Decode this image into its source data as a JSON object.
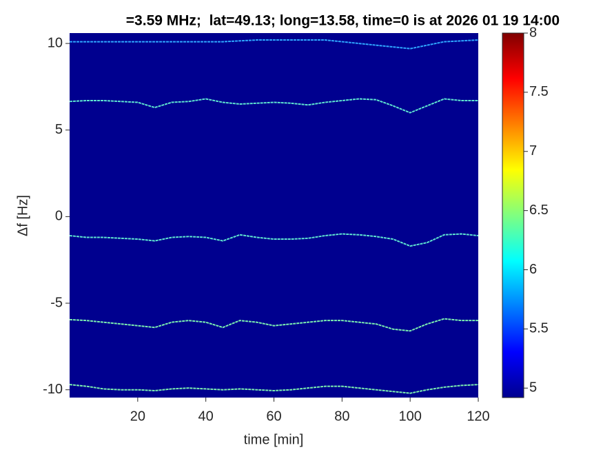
{
  "chart_data": {
    "type": "line",
    "title": "=3.59 MHz;  lat=49.13; long=13.58, time=0 is at 2026 01 19 14:00",
    "x_label": "time [min]",
    "y_label": "Δf [Hz]",
    "background": "#00008f",
    "x": [
      0,
      5,
      10,
      15,
      20,
      25,
      30,
      35,
      40,
      45,
      50,
      55,
      60,
      65,
      70,
      75,
      80,
      85,
      90,
      95,
      100,
      105,
      110,
      115,
      120
    ],
    "series": [
      {
        "color": "#2fa8ff",
        "values": [
          10.1,
          10.1,
          10.1,
          10.1,
          10.1,
          10.1,
          10.1,
          10.1,
          10.1,
          10.1,
          10.15,
          10.2,
          10.2,
          10.2,
          10.2,
          10.2,
          10.1,
          10.0,
          9.9,
          9.8,
          9.7,
          9.9,
          10.1,
          10.15,
          10.2
        ]
      },
      {
        "color": "#5fe6d0",
        "values": [
          6.65,
          6.7,
          6.7,
          6.65,
          6.6,
          6.3,
          6.6,
          6.65,
          6.8,
          6.6,
          6.5,
          6.55,
          6.6,
          6.55,
          6.45,
          6.6,
          6.7,
          6.8,
          6.75,
          6.4,
          6.0,
          6.4,
          6.8,
          6.7,
          6.7
        ]
      },
      {
        "color": "#5fe6d0",
        "values": [
          -1.1,
          -1.2,
          -1.2,
          -1.25,
          -1.3,
          -1.4,
          -1.2,
          -1.15,
          -1.2,
          -1.4,
          -1.05,
          -1.2,
          -1.3,
          -1.3,
          -1.25,
          -1.1,
          -1.0,
          -1.05,
          -1.15,
          -1.3,
          -1.7,
          -1.5,
          -1.05,
          -1.0,
          -1.1
        ]
      },
      {
        "color": "#7cf0b0",
        "values": [
          -5.95,
          -6.0,
          -6.1,
          -6.2,
          -6.3,
          -6.4,
          -6.1,
          -6.0,
          -6.1,
          -6.4,
          -6.0,
          -6.1,
          -6.3,
          -6.2,
          -6.1,
          -6.0,
          -6.0,
          -6.1,
          -6.2,
          -6.5,
          -6.6,
          -6.2,
          -5.9,
          -6.0,
          -6.0
        ]
      },
      {
        "color": "#7cf0b0",
        "values": [
          -9.7,
          -9.8,
          -9.95,
          -10.0,
          -10.0,
          -10.05,
          -9.95,
          -9.9,
          -9.95,
          -10.0,
          -9.95,
          -10.0,
          -10.05,
          -10.0,
          -9.9,
          -9.8,
          -9.8,
          -9.9,
          -10.0,
          -10.1,
          -10.2,
          -10.0,
          -9.85,
          -9.75,
          -9.7
        ]
      }
    ],
    "xlim": [
      0,
      120
    ],
    "xticks": [
      20,
      40,
      60,
      80,
      100,
      120
    ],
    "ylim": [
      -10.45,
      10.6
    ],
    "yticks": [
      -10,
      -5,
      0,
      5,
      10
    ],
    "colorbar_lim": [
      4.92,
      8
    ],
    "colorbar_ticks": [
      5,
      5.5,
      6,
      6.5,
      7,
      7.5,
      8
    ]
  }
}
